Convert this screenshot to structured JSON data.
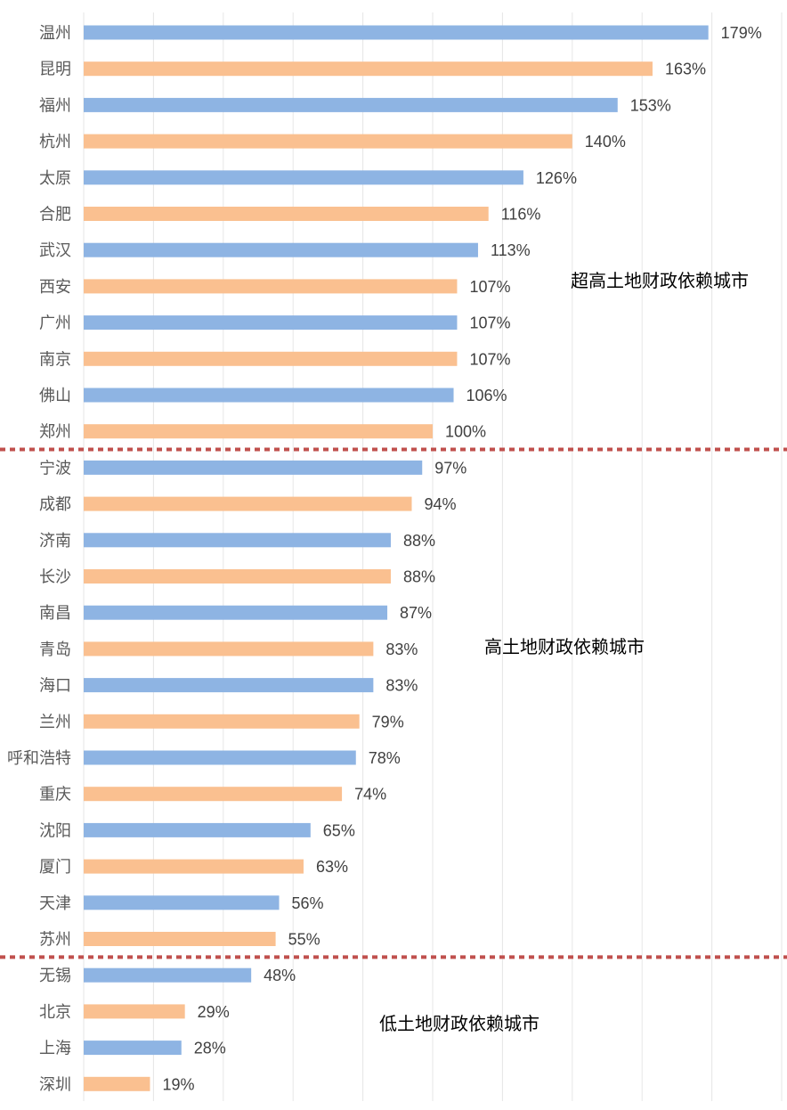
{
  "chart_data": {
    "type": "bar",
    "orientation": "horizontal",
    "grid": true,
    "xlim": [
      0,
      200
    ],
    "colors": {
      "blue": "#8eb4e3",
      "orange": "#fac090",
      "divider": "#c0504d"
    },
    "categories": [
      "温州",
      "昆明",
      "福州",
      "杭州",
      "太原",
      "合肥",
      "武汉",
      "西安",
      "广州",
      "南京",
      "佛山",
      "郑州",
      "宁波",
      "成都",
      "济南",
      "长沙",
      "南昌",
      "青岛",
      "海口",
      "兰州",
      "呼和浩特",
      "重庆",
      "沈阳",
      "厦门",
      "天津",
      "苏州",
      "无锡",
      "北京",
      "上海",
      "深圳"
    ],
    "values": [
      179,
      163,
      153,
      140,
      126,
      116,
      113,
      107,
      107,
      107,
      106,
      100,
      97,
      94,
      88,
      88,
      87,
      83,
      83,
      79,
      78,
      74,
      65,
      63,
      56,
      55,
      48,
      29,
      28,
      19
    ],
    "labels": [
      "179%",
      "163%",
      "153%",
      "140%",
      "126%",
      "116%",
      "113%",
      "107%",
      "107%",
      "107%",
      "106%",
      "100%",
      "97%",
      "94%",
      "88%",
      "88%",
      "87%",
      "83%",
      "83%",
      "79%",
      "78%",
      "74%",
      "65%",
      "63%",
      "56%",
      "55%",
      "48%",
      "29%",
      "28%",
      "19%"
    ],
    "groups": [
      {
        "label": "超高土地财政依赖城市",
        "start": 0,
        "end": 11
      },
      {
        "label": "高土地财政依赖城市",
        "start": 12,
        "end": 25
      },
      {
        "label": "低土地财政依赖城市",
        "start": 26,
        "end": 29
      }
    ]
  }
}
